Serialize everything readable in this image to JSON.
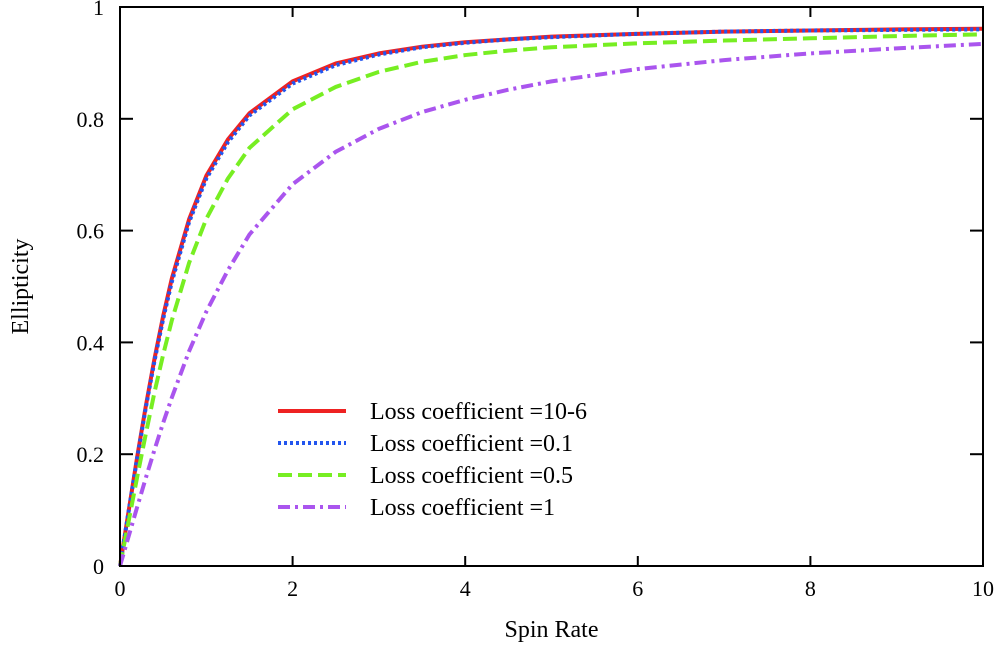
{
  "chart_data": {
    "type": "line",
    "title": "",
    "xlabel": "Spin Rate",
    "ylabel": "Ellipticity",
    "xlim": [
      0,
      10
    ],
    "ylim": [
      0,
      1
    ],
    "xticks": [
      0,
      2,
      4,
      6,
      8,
      10
    ],
    "yticks": [
      0,
      0.2,
      0.4,
      0.6,
      0.8,
      1
    ],
    "ytick_labels": [
      "0",
      "0.2",
      "0.4",
      "0.6",
      "0.8",
      "1"
    ],
    "grid": false,
    "legend_position": "lower-center",
    "x": [
      0,
      0.1,
      0.2,
      0.3,
      0.4,
      0.5,
      0.6,
      0.8,
      1.0,
      1.25,
      1.5,
      2.0,
      2.5,
      3.0,
      3.5,
      4.0,
      4.5,
      5.0,
      6.0,
      7.0,
      8.0,
      9.0,
      10.0
    ],
    "series": [
      {
        "name": "Loss coefficient =10-6",
        "color": "#ee2222",
        "dash": "solid",
        "values": [
          0.0,
          0.098,
          0.196,
          0.287,
          0.371,
          0.447,
          0.514,
          0.62,
          0.698,
          0.763,
          0.81,
          0.867,
          0.899,
          0.917,
          0.929,
          0.937,
          0.942,
          0.947,
          0.952,
          0.956,
          0.958,
          0.96,
          0.961
        ]
      },
      {
        "name": "Loss coefficient =0.1",
        "color": "#2255ee",
        "dash": "dotted",
        "values": [
          0.0,
          0.098,
          0.194,
          0.284,
          0.367,
          0.442,
          0.508,
          0.615,
          0.693,
          0.758,
          0.806,
          0.863,
          0.896,
          0.915,
          0.928,
          0.936,
          0.942,
          0.946,
          0.952,
          0.956,
          0.958,
          0.959,
          0.96
        ]
      },
      {
        "name": "Loss coefficient =0.5",
        "color": "#77ee22",
        "dash": "dashed",
        "values": [
          0.0,
          0.08,
          0.16,
          0.237,
          0.311,
          0.378,
          0.439,
          0.542,
          0.621,
          0.693,
          0.748,
          0.817,
          0.857,
          0.884,
          0.902,
          0.914,
          0.922,
          0.928,
          0.935,
          0.94,
          0.944,
          0.948,
          0.951
        ]
      },
      {
        "name": "Loss coefficient =1",
        "color": "#aa55ee",
        "dash": "dash-dot",
        "values": [
          0.0,
          0.053,
          0.106,
          0.158,
          0.208,
          0.256,
          0.301,
          0.384,
          0.455,
          0.529,
          0.593,
          0.683,
          0.741,
          0.782,
          0.812,
          0.834,
          0.852,
          0.867,
          0.889,
          0.905,
          0.917,
          0.926,
          0.934
        ]
      }
    ]
  }
}
